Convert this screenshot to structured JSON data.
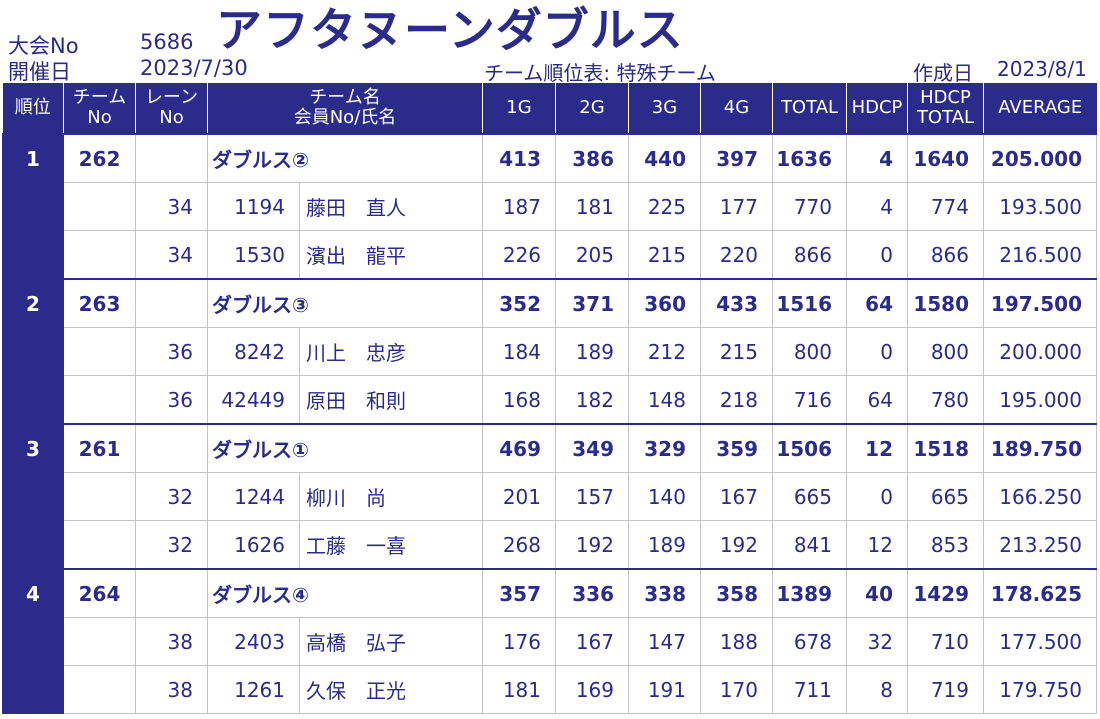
{
  "header": {
    "tournament_no_label": "大会No",
    "tournament_no": "5686",
    "title": "アフタヌーンダブルス",
    "date_label": "開催日",
    "date": "2023/7/30",
    "report_name": "チーム順位表: 特殊チーム",
    "created_label": "作成日",
    "created": "2023/8/1"
  },
  "columns": {
    "rank": "順位",
    "team_no_1": "チーム",
    "team_no_2": "No",
    "lane_no_1": "レーン",
    "lane_no_2": "No",
    "name_1": "チーム名",
    "name_2": "会員No/氏名",
    "g1": "1G",
    "g2": "2G",
    "g3": "3G",
    "g4": "4G",
    "total": "TOTAL",
    "hdcp": "HDCP",
    "hdcp_total_1": "HDCP",
    "hdcp_total_2": "TOTAL",
    "average": "AVERAGE"
  },
  "teams": [
    {
      "rank": "1",
      "team_no": "262",
      "team_name": "ダブルス②",
      "g1": "413",
      "g2": "386",
      "g3": "440",
      "g4": "397",
      "total": "1636",
      "hdcp": "4",
      "hdcp_total": "1640",
      "average": "205.000",
      "members": [
        {
          "lane": "34",
          "member_no": "1194",
          "name": "藤田　直人",
          "g1": "187",
          "g2": "181",
          "g3": "225",
          "g4": "177",
          "total": "770",
          "hdcp": "4",
          "hdcp_total": "774",
          "average": "193.500"
        },
        {
          "lane": "34",
          "member_no": "1530",
          "name": "濱出　龍平",
          "g1": "226",
          "g2": "205",
          "g3": "215",
          "g4": "220",
          "total": "866",
          "hdcp": "0",
          "hdcp_total": "866",
          "average": "216.500"
        }
      ]
    },
    {
      "rank": "2",
      "team_no": "263",
      "team_name": "ダブルス③",
      "g1": "352",
      "g2": "371",
      "g3": "360",
      "g4": "433",
      "total": "1516",
      "hdcp": "64",
      "hdcp_total": "1580",
      "average": "197.500",
      "members": [
        {
          "lane": "36",
          "member_no": "8242",
          "name": "川上　忠彦",
          "g1": "184",
          "g2": "189",
          "g3": "212",
          "g4": "215",
          "total": "800",
          "hdcp": "0",
          "hdcp_total": "800",
          "average": "200.000"
        },
        {
          "lane": "36",
          "member_no": "42449",
          "name": "原田　和則",
          "g1": "168",
          "g2": "182",
          "g3": "148",
          "g4": "218",
          "total": "716",
          "hdcp": "64",
          "hdcp_total": "780",
          "average": "195.000"
        }
      ]
    },
    {
      "rank": "3",
      "team_no": "261",
      "team_name": "ダブルス①",
      "g1": "469",
      "g2": "349",
      "g3": "329",
      "g4": "359",
      "total": "1506",
      "hdcp": "12",
      "hdcp_total": "1518",
      "average": "189.750",
      "members": [
        {
          "lane": "32",
          "member_no": "1244",
          "name": "柳川　尚",
          "g1": "201",
          "g2": "157",
          "g3": "140",
          "g4": "167",
          "total": "665",
          "hdcp": "0",
          "hdcp_total": "665",
          "average": "166.250"
        },
        {
          "lane": "32",
          "member_no": "1626",
          "name": "工藤　一喜",
          "g1": "268",
          "g2": "192",
          "g3": "189",
          "g4": "192",
          "total": "841",
          "hdcp": "12",
          "hdcp_total": "853",
          "average": "213.250"
        }
      ]
    },
    {
      "rank": "4",
      "team_no": "264",
      "team_name": "ダブルス④",
      "g1": "357",
      "g2": "336",
      "g3": "338",
      "g4": "358",
      "total": "1389",
      "hdcp": "40",
      "hdcp_total": "1429",
      "average": "178.625",
      "members": [
        {
          "lane": "38",
          "member_no": "2403",
          "name": "高橋　弘子",
          "g1": "176",
          "g2": "167",
          "g3": "147",
          "g4": "188",
          "total": "678",
          "hdcp": "32",
          "hdcp_total": "710",
          "average": "177.500"
        },
        {
          "lane": "38",
          "member_no": "1261",
          "name": "久保　正光",
          "g1": "181",
          "g2": "169",
          "g3": "191",
          "g4": "170",
          "total": "711",
          "hdcp": "8",
          "hdcp_total": "719",
          "average": "179.750"
        }
      ]
    }
  ]
}
